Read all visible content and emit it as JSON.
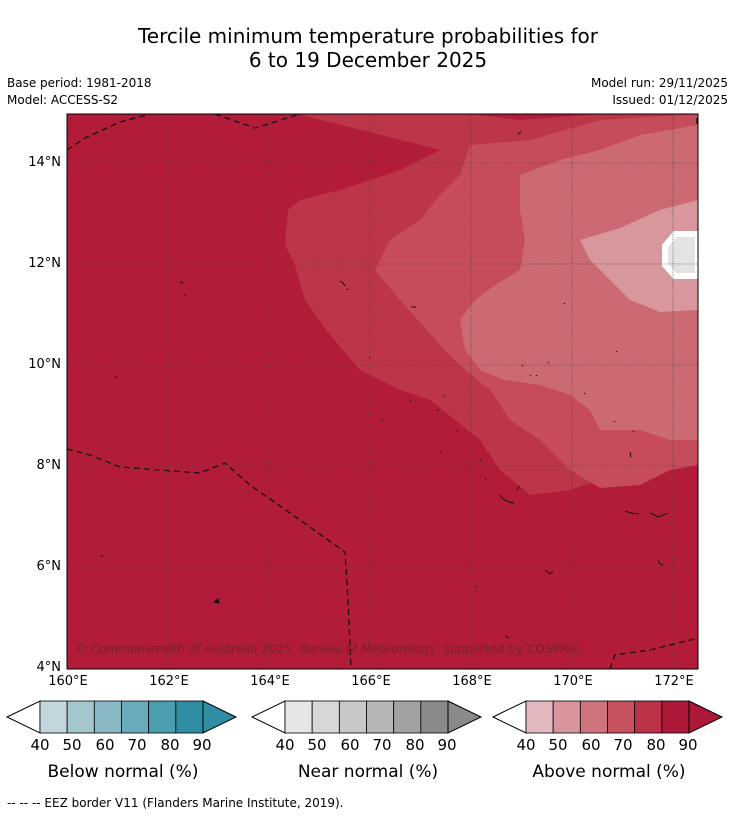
{
  "title": {
    "line1": "Tercile minimum temperature probabilities for",
    "line2": "6 to 19 December 2025"
  },
  "meta": {
    "base_period": "Base period: 1981-2018",
    "model": "Model: ACCESS-S2",
    "model_run": "Model run: 29/11/2025",
    "issued": "Issued: 01/12/2025"
  },
  "map": {
    "lon_labels": [
      "160°E",
      "162°E",
      "164°E",
      "166°E",
      "168°E",
      "170°E",
      "172°E"
    ],
    "lat_labels": [
      "14°N",
      "12°N",
      "10°N",
      "8°N",
      "6°N",
      "4°N"
    ],
    "credit": "© Commonwealth of Australia 2025, Bureau of Meteorology, supported by COSPPac",
    "colors": {
      "above_90": "#b31c38",
      "above_80": "#bd3549",
      "above_70": "#c64c5b",
      "above_60": "#cc6a73",
      "above_50": "#d8979c",
      "normal_40": "#e3e3e3"
    }
  },
  "colorbars": [
    {
      "label": "Below normal (%)",
      "ticks": [
        "40",
        "50",
        "60",
        "70",
        "80",
        "90"
      ],
      "colors": [
        "#c3d6dd",
        "#a4c7ce",
        "#88b9c4",
        "#6aabbb",
        "#4b9db0",
        "#2f8ea4"
      ]
    },
    {
      "label": "Near normal (%)",
      "ticks": [
        "40",
        "50",
        "60",
        "70",
        "80",
        "90"
      ],
      "colors": [
        "#e6e6e6",
        "#d8d8d8",
        "#c8c8c8",
        "#b6b6b6",
        "#a2a2a2",
        "#8a8a8a"
      ]
    },
    {
      "label": "Above normal (%)",
      "ticks": [
        "40",
        "50",
        "60",
        "70",
        "80",
        "90"
      ],
      "colors": [
        "#e3b9bf",
        "#d9959c",
        "#cf737c",
        "#c5525e",
        "#ba3349",
        "#ae1838"
      ]
    }
  ],
  "footer": {
    "eez": "--  --  -- EEZ border V11 (Flanders Marine Institute, 2019)."
  }
}
